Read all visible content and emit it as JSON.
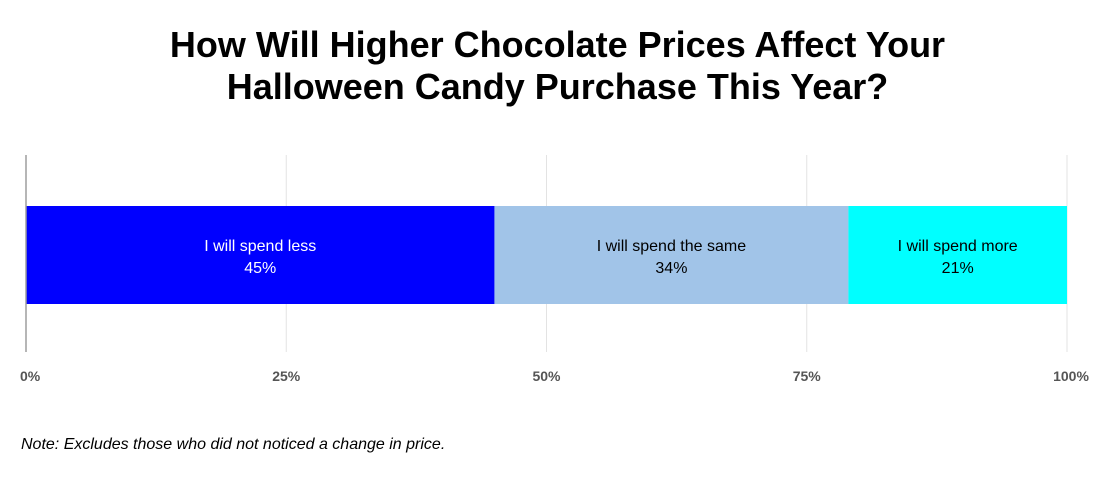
{
  "chart_data": {
    "type": "bar",
    "orientation": "horizontal",
    "stacked": true,
    "title_lines": [
      "How Will Higher Chocolate Prices Affect Your",
      "Halloween Candy Purchase This Year?"
    ],
    "categories": [
      ""
    ],
    "series": [
      {
        "name": "I will spend less",
        "values": [
          45
        ],
        "label": "45%",
        "color": "#0000ff",
        "text_color": "#ffffff"
      },
      {
        "name": "I will spend the same",
        "values": [
          34
        ],
        "label": "34%",
        "color": "#a1c4e8",
        "text_color": "#000000"
      },
      {
        "name": "I will spend more",
        "values": [
          21
        ],
        "label": "21%",
        "color": "#00ffff",
        "text_color": "#000000"
      }
    ],
    "xlim": [
      0,
      100
    ],
    "ticks": [
      0,
      25,
      50,
      75,
      100
    ],
    "tick_labels": [
      "0%",
      "25%",
      "50%",
      "75%",
      "100%"
    ],
    "grid": true,
    "note": "Note: Excludes those who did not noticed a change in price."
  }
}
